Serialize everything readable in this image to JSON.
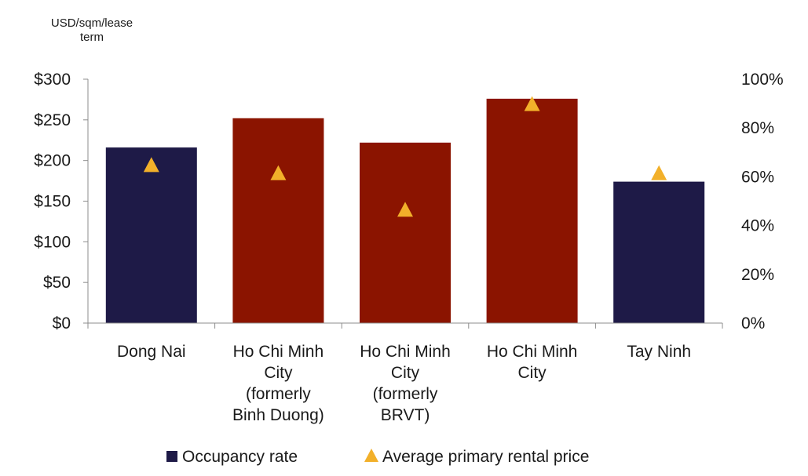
{
  "chart_data": {
    "type": "bar",
    "units_label": [
      "USD/sqm/lease",
      "term"
    ],
    "categories": [
      [
        "Dong Nai"
      ],
      [
        "Ho Chi Minh",
        "City",
        "(formerly",
        "Binh Duong)"
      ],
      [
        "Ho Chi Minh",
        "City",
        "(formerly",
        "BRVT)"
      ],
      [
        "Ho Chi Minh",
        "City"
      ],
      [
        "Tay Ninh"
      ]
    ],
    "left_axis": {
      "ylim": [
        0,
        300
      ],
      "ticks": [
        0,
        50,
        100,
        150,
        200,
        250,
        300
      ],
      "tick_labels": [
        "$0",
        "$50",
        "$100",
        "$150",
        "$200",
        "$250",
        "$300"
      ]
    },
    "right_axis": {
      "ylim": [
        0,
        100
      ],
      "ticks": [
        0,
        20,
        40,
        60,
        80,
        100
      ],
      "tick_labels": [
        "0%",
        "20%",
        "40%",
        "60%",
        "80%",
        "100%"
      ]
    },
    "series": [
      {
        "name": "Occupancy rate",
        "kind": "bar",
        "axis": "right",
        "unit": "%",
        "values": [
          72,
          84,
          74,
          92,
          58
        ],
        "colors": [
          "#1e1a47",
          "#8b1400",
          "#8b1400",
          "#8b1400",
          "#1e1a47"
        ]
      },
      {
        "name": "Average primary rental price",
        "kind": "marker-triangle",
        "axis": "left",
        "unit": "USD/sqm/lease term",
        "values": [
          195,
          185,
          140,
          270,
          185
        ],
        "color": "#f2b02a"
      }
    ],
    "legend": {
      "placement": "bottom",
      "items": [
        {
          "label": "Occupancy rate",
          "swatch": "square",
          "color": "#1e1a47"
        },
        {
          "label": "Average primary rental price",
          "swatch": "triangle",
          "color": "#f2b02a"
        }
      ]
    },
    "grid": false
  }
}
